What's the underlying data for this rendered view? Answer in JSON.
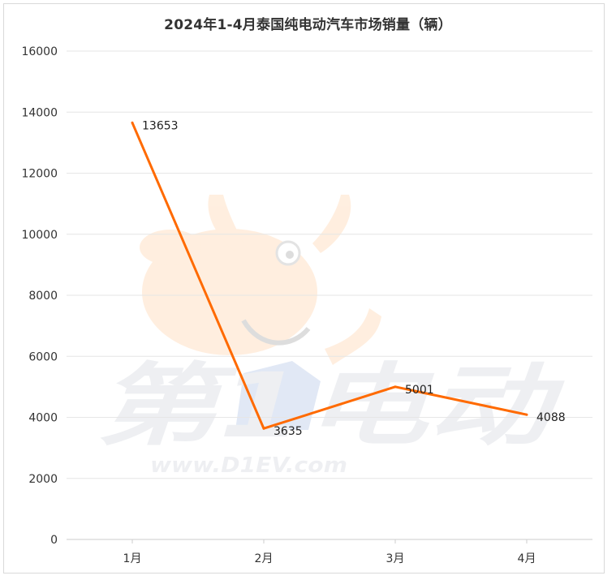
{
  "chart_data": {
    "type": "line",
    "title": "2024年1-4月泰国纯电动汽车市场销量（辆）",
    "categories": [
      "1月",
      "2月",
      "3月",
      "4月"
    ],
    "series": [
      {
        "values": [
          13653,
          3635,
          5001,
          4088
        ]
      }
    ],
    "ylim": [
      0,
      16000
    ],
    "yticks": [
      0,
      2000,
      4000,
      6000,
      8000,
      10000,
      12000,
      14000,
      16000
    ],
    "grid": true,
    "legend": "none",
    "colors": {
      "line": "#ff6a00",
      "grid": "#e6e6e6",
      "axis": "#cccccc",
      "text": "#333333"
    }
  },
  "watermark": {
    "brand": "第1电动",
    "url": "www.D1EV.com"
  }
}
